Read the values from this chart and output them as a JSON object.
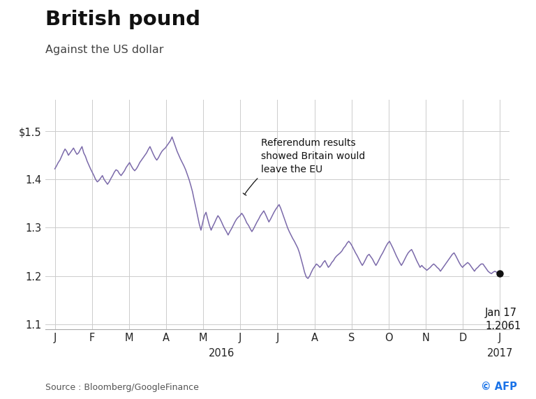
{
  "title": "British pound",
  "subtitle": "Against the US dollar",
  "source": "Source : Bloomberg/GoogleFinance",
  "watermark": "© AFP",
  "annotation_text": "Referendum results\nshowed Britain would\nleave the EU",
  "last_label": "Jan 17\n1.2061",
  "last_value": 1.2061,
  "line_color": "#7B6AAA",
  "dot_color": "#111111",
  "background_color": "#ffffff",
  "grid_color": "#cccccc",
  "ylim": [
    1.09,
    1.565
  ],
  "yticks": [
    1.1,
    1.2,
    1.3,
    1.4,
    1.5
  ],
  "ytick_labels": [
    "1.1",
    "1.2",
    "1.3",
    "1.4",
    "$1.5"
  ],
  "xtick_labels": [
    "J",
    "F",
    "M",
    "A",
    "M",
    "J",
    "J",
    "A",
    "S",
    "O",
    "N",
    "D",
    "J"
  ],
  "data": [
    1.422,
    1.428,
    1.435,
    1.44,
    1.448,
    1.456,
    1.463,
    1.458,
    1.45,
    1.455,
    1.46,
    1.465,
    1.458,
    1.452,
    1.455,
    1.462,
    1.468,
    1.455,
    1.448,
    1.438,
    1.43,
    1.422,
    1.415,
    1.408,
    1.4,
    1.395,
    1.398,
    1.403,
    1.408,
    1.4,
    1.395,
    1.39,
    1.395,
    1.402,
    1.408,
    1.415,
    1.42,
    1.418,
    1.412,
    1.408,
    1.413,
    1.418,
    1.425,
    1.43,
    1.435,
    1.428,
    1.422,
    1.418,
    1.422,
    1.428,
    1.435,
    1.44,
    1.445,
    1.45,
    1.455,
    1.462,
    1.468,
    1.46,
    1.452,
    1.445,
    1.44,
    1.445,
    1.452,
    1.458,
    1.462,
    1.465,
    1.47,
    1.475,
    1.48,
    1.488,
    1.478,
    1.468,
    1.458,
    1.45,
    1.442,
    1.435,
    1.428,
    1.42,
    1.41,
    1.4,
    1.388,
    1.375,
    1.358,
    1.342,
    1.325,
    1.308,
    1.295,
    1.31,
    1.325,
    1.332,
    1.318,
    1.305,
    1.295,
    1.303,
    1.31,
    1.318,
    1.325,
    1.32,
    1.313,
    1.305,
    1.298,
    1.292,
    1.285,
    1.292,
    1.298,
    1.305,
    1.312,
    1.318,
    1.322,
    1.325,
    1.33,
    1.325,
    1.318,
    1.31,
    1.305,
    1.298,
    1.292,
    1.298,
    1.305,
    1.312,
    1.318,
    1.325,
    1.33,
    1.335,
    1.328,
    1.32,
    1.312,
    1.318,
    1.325,
    1.332,
    1.338,
    1.343,
    1.348,
    1.34,
    1.33,
    1.32,
    1.31,
    1.3,
    1.292,
    1.285,
    1.278,
    1.272,
    1.265,
    1.258,
    1.248,
    1.235,
    1.222,
    1.208,
    1.198,
    1.195,
    1.2,
    1.208,
    1.215,
    1.22,
    1.225,
    1.222,
    1.218,
    1.222,
    1.228,
    1.232,
    1.225,
    1.218,
    1.222,
    1.228,
    1.232,
    1.238,
    1.242,
    1.245,
    1.248,
    1.252,
    1.258,
    1.262,
    1.268,
    1.272,
    1.268,
    1.262,
    1.255,
    1.248,
    1.242,
    1.235,
    1.228,
    1.222,
    1.228,
    1.235,
    1.242,
    1.245,
    1.24,
    1.235,
    1.228,
    1.222,
    1.228,
    1.235,
    1.242,
    1.248,
    1.255,
    1.262,
    1.268,
    1.272,
    1.265,
    1.258,
    1.25,
    1.242,
    1.235,
    1.228,
    1.222,
    1.228,
    1.235,
    1.242,
    1.248,
    1.252,
    1.255,
    1.248,
    1.24,
    1.232,
    1.225,
    1.218,
    1.222,
    1.218,
    1.215,
    1.212,
    1.215,
    1.218,
    1.222,
    1.225,
    1.222,
    1.218,
    1.215,
    1.21,
    1.215,
    1.22,
    1.225,
    1.23,
    1.235,
    1.24,
    1.245,
    1.248,
    1.242,
    1.235,
    1.228,
    1.222,
    1.218,
    1.222,
    1.225,
    1.228,
    1.225,
    1.22,
    1.215,
    1.21,
    1.215,
    1.218,
    1.222,
    1.225,
    1.225,
    1.22,
    1.215,
    1.21,
    1.207,
    1.205,
    1.208,
    1.21,
    1.208,
    1.205,
    1.206
  ]
}
